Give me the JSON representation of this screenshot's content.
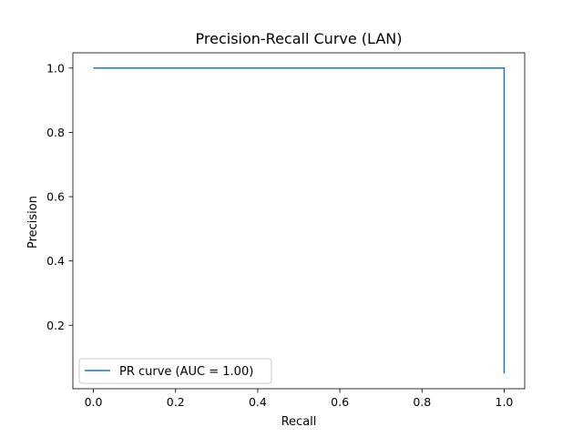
{
  "chart_data": {
    "type": "line",
    "title": "Precision-Recall Curve (LAN)",
    "xlabel": "Recall",
    "ylabel": "Precision",
    "xlim": [
      -0.05,
      1.05
    ],
    "ylim": [
      0.0025,
      1.0475
    ],
    "xticks": [
      0.0,
      0.2,
      0.4,
      0.6,
      0.8,
      1.0
    ],
    "xtick_labels": [
      "0.0",
      "0.2",
      "0.4",
      "0.6",
      "0.8",
      "1.0"
    ],
    "yticks": [
      0.2,
      0.4,
      0.6,
      0.8,
      1.0
    ],
    "ytick_labels": [
      "0.2",
      "0.4",
      "0.6",
      "0.8",
      "1.0"
    ],
    "grid": false,
    "legend_position": "lower-left",
    "series": [
      {
        "name": "PR curve (AUC = 1.00)",
        "color": "#1f77b4",
        "x": [
          0.0,
          1.0,
          1.0
        ],
        "y": [
          1.0,
          1.0,
          0.05
        ]
      }
    ]
  }
}
